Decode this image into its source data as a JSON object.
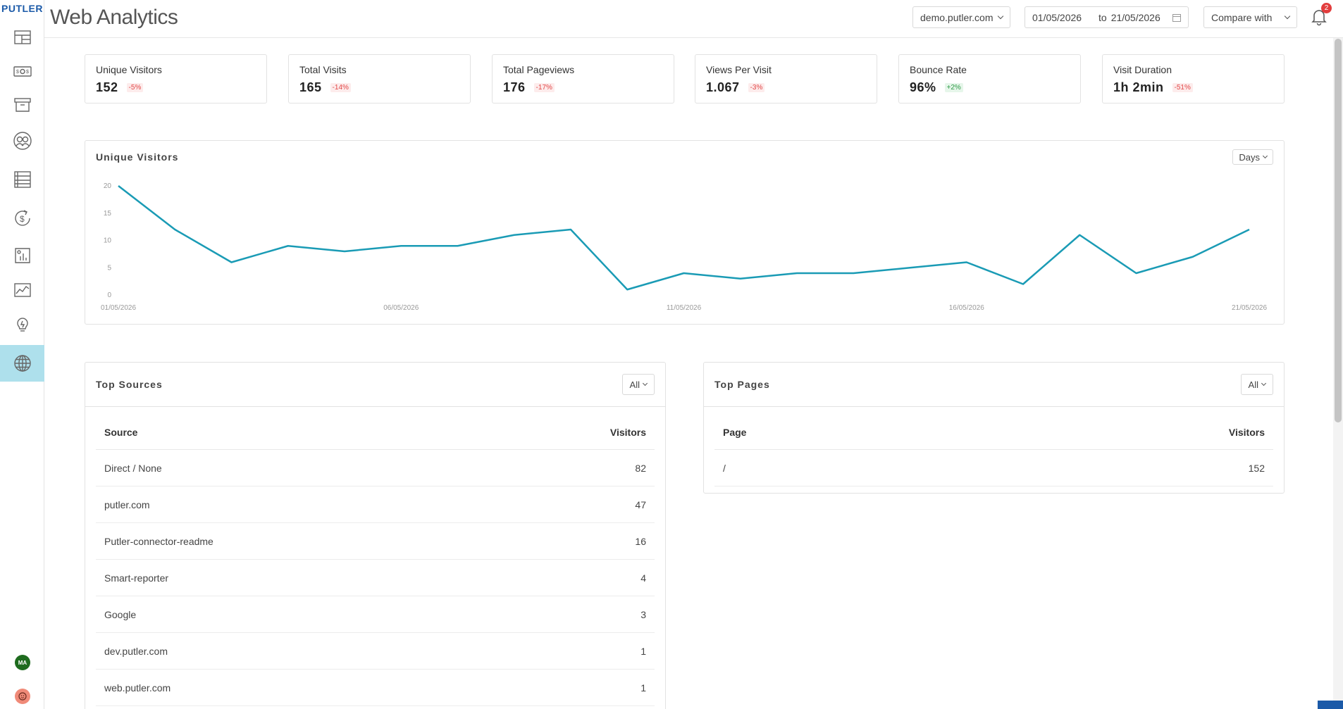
{
  "app": {
    "logo": "PUTLER"
  },
  "header": {
    "title": "Web Analytics",
    "site_selector": "demo.putler.com",
    "date_from": "01/05/2026",
    "date_to_label": "to",
    "date_to": "21/05/2026",
    "compare_label": "Compare with",
    "notification_count": "2"
  },
  "sidebar": {
    "items": [
      {
        "icon": "dashboard-icon"
      },
      {
        "icon": "sales-icon"
      },
      {
        "icon": "products-icon"
      },
      {
        "icon": "customers-icon"
      },
      {
        "icon": "transactions-icon"
      },
      {
        "icon": "subscriptions-icon"
      },
      {
        "icon": "reports-icon"
      },
      {
        "icon": "insights-icon"
      },
      {
        "icon": "ideas-icon"
      },
      {
        "icon": "web-analytics-icon",
        "active": true
      }
    ],
    "user_initials": "MA"
  },
  "kpis": [
    {
      "title": "Unique Visitors",
      "value": "152",
      "change": "-5%",
      "trend": "neg"
    },
    {
      "title": "Total Visits",
      "value": "165",
      "change": "-14%",
      "trend": "neg"
    },
    {
      "title": "Total Pageviews",
      "value": "176",
      "change": "-17%",
      "trend": "neg"
    },
    {
      "title": "Views Per Visit",
      "value": "1.067",
      "change": "-3%",
      "trend": "neg"
    },
    {
      "title": "Bounce Rate",
      "value": "96%",
      "change": "+2%",
      "trend": "pos"
    },
    {
      "title": "Visit Duration",
      "value": "1h 2min",
      "change": "-51%",
      "trend": "neg"
    }
  ],
  "chart_card": {
    "title": "Unique Visitors",
    "interval": "Days"
  },
  "chart_data": {
    "type": "line",
    "x": [
      "01/05/2026",
      "02/05/2026",
      "03/05/2026",
      "04/05/2026",
      "05/05/2026",
      "06/05/2026",
      "07/05/2026",
      "08/05/2026",
      "09/05/2026",
      "10/05/2026",
      "11/05/2026",
      "12/05/2026",
      "13/05/2026",
      "14/05/2026",
      "15/05/2026",
      "16/05/2026",
      "17/05/2026",
      "18/05/2026",
      "19/05/2026",
      "20/05/2026",
      "21/05/2026"
    ],
    "series": [
      {
        "values": [
          20,
          12,
          6,
          9,
          8,
          9,
          9,
          11,
          12,
          1,
          4,
          3,
          4,
          4,
          5,
          6,
          2,
          11,
          4,
          7,
          12
        ]
      }
    ],
    "y_ticks": [
      "0",
      "5",
      "10",
      "15",
      "20"
    ],
    "x_ticks": [
      "01/05/2026",
      "06/05/2026",
      "11/05/2026",
      "16/05/2026",
      "21/05/2026"
    ],
    "ylim": [
      0,
      20
    ],
    "color": "#1a9bb5"
  },
  "top_sources": {
    "title": "Top Sources",
    "filter": "All",
    "columns": [
      "Source",
      "Visitors"
    ],
    "rows": [
      [
        "Direct / None",
        "82"
      ],
      [
        "putler.com",
        "47"
      ],
      [
        "Putler-connector-readme",
        "16"
      ],
      [
        "Smart-reporter",
        "4"
      ],
      [
        "Google",
        "3"
      ],
      [
        "dev.putler.com",
        "1"
      ],
      [
        "web.putler.com",
        "1"
      ]
    ]
  },
  "top_pages": {
    "title": "Top Pages",
    "filter": "All",
    "columns": [
      "Page",
      "Visitors"
    ],
    "rows": [
      [
        "/",
        "152"
      ]
    ]
  }
}
